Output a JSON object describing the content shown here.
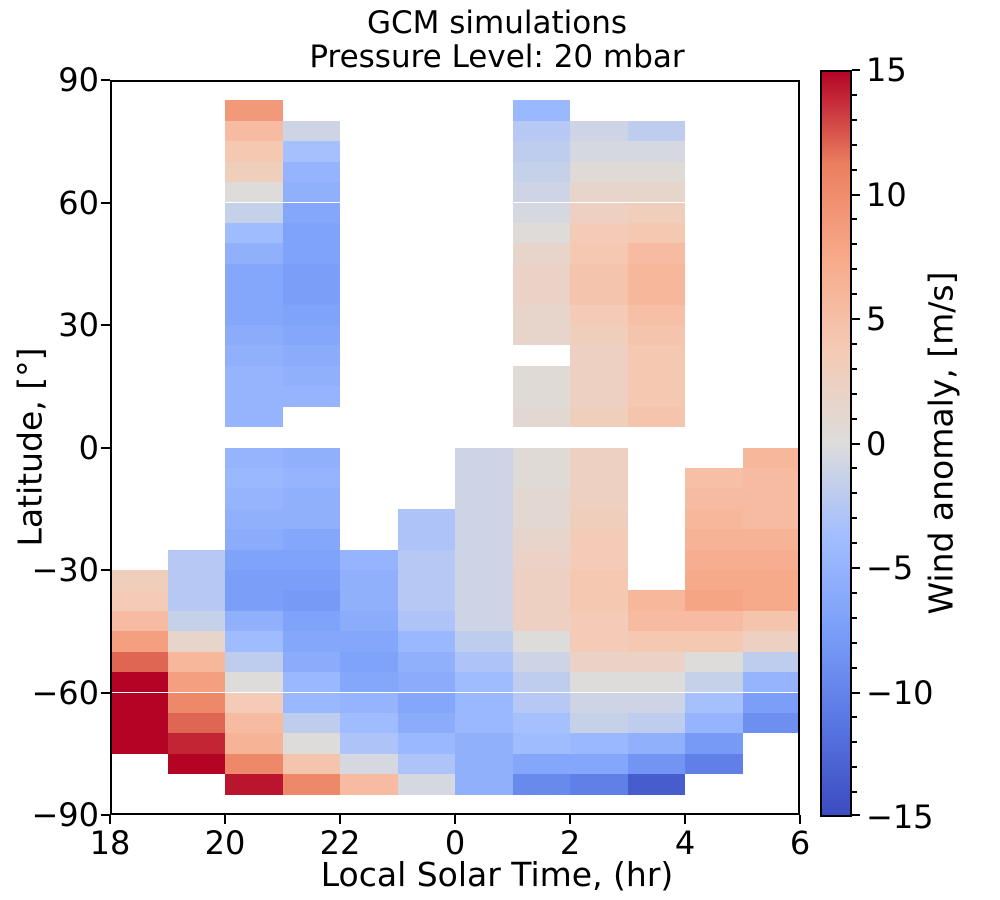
{
  "title": {
    "line1": "GCM simulations",
    "line2": "Pressure Level: 20 mbar"
  },
  "axes": {
    "xlabel": "Local Solar Time, (hr)",
    "ylabel": "Latitude, [°]",
    "x_tick_labels": [
      "18",
      "20",
      "22",
      "0",
      "2",
      "4",
      "6"
    ],
    "x_tick_hour_offsets": [
      0,
      2,
      4,
      6,
      8,
      10,
      12
    ],
    "y_tick_labels": [
      "90",
      "60",
      "30",
      "0",
      "−30",
      "−60",
      "−90"
    ],
    "y_tick_values": [
      90,
      60,
      30,
      0,
      -30,
      -60,
      -90
    ],
    "x_range_hours": 12,
    "lat_range": [
      -90,
      90
    ]
  },
  "colorbar": {
    "label": "Wind anomaly, [m/s]",
    "tick_labels": [
      "15",
      "10",
      "5",
      "0",
      "−5",
      "−10",
      "−15"
    ],
    "tick_values": [
      15,
      10,
      5,
      0,
      -5,
      -10,
      -15
    ],
    "minor_tick_step": 1,
    "vmin": -15,
    "vmax": 15,
    "colormap": "coolwarm",
    "stops": [
      "#3b4cc0",
      "#5977e3",
      "#7b9ff9",
      "#a2beff",
      "#dddcdb",
      "#f5cab4",
      "#f7aa8a",
      "#eb7f60",
      "#b40426"
    ]
  },
  "chart_data": {
    "type": "heatmap",
    "title": "GCM simulations — Pressure Level: 20 mbar",
    "xlabel": "Local Solar Time, (hr)",
    "ylabel": "Latitude, [°]",
    "value_label": "Wind anomaly, [m/s]",
    "vmin": -15,
    "vmax": 15,
    "x_edges_hours": [
      18,
      19,
      20,
      21,
      22,
      23,
      0,
      1,
      2,
      3,
      4,
      5,
      6
    ],
    "lat_edges": [
      90,
      85,
      80,
      75,
      70,
      65,
      60,
      55,
      50,
      45,
      40,
      35,
      30,
      25,
      20,
      15,
      10,
      5,
      0,
      -5,
      -10,
      -15,
      -20,
      -25,
      -30,
      -35,
      -40,
      -45,
      -50,
      -55,
      -60,
      -65,
      -70,
      -75,
      -80,
      -85,
      -90
    ],
    "values": [
      [
        null,
        null,
        null,
        null,
        null,
        null,
        null,
        null,
        null,
        null,
        null,
        null
      ],
      [
        null,
        null,
        9,
        null,
        null,
        null,
        null,
        -4.5,
        null,
        null,
        null,
        null
      ],
      [
        null,
        null,
        5.5,
        -1,
        null,
        null,
        null,
        -2.5,
        -1,
        -2,
        null,
        null
      ],
      [
        null,
        null,
        4,
        -3.5,
        null,
        null,
        null,
        -2,
        -0.5,
        -0.5,
        null,
        null
      ],
      [
        null,
        null,
        3,
        -5,
        null,
        null,
        null,
        -1.5,
        0.5,
        0.5,
        null,
        null
      ],
      [
        null,
        null,
        0,
        -5.5,
        null,
        null,
        null,
        -1,
        1.5,
        1.5,
        null,
        null
      ],
      [
        null,
        null,
        -1.5,
        -6.5,
        null,
        null,
        null,
        -0.5,
        2.5,
        3,
        null,
        null
      ],
      [
        null,
        null,
        -4,
        -7,
        null,
        null,
        null,
        0.3,
        3.5,
        4,
        null,
        null
      ],
      [
        null,
        null,
        -5.5,
        -7,
        null,
        null,
        null,
        1.5,
        4,
        5.5,
        null,
        null
      ],
      [
        null,
        null,
        -6.5,
        -7.5,
        null,
        null,
        null,
        2,
        4.5,
        6,
        null,
        null
      ],
      [
        null,
        null,
        -6.5,
        -7.5,
        null,
        null,
        null,
        2,
        4.5,
        6,
        null,
        null
      ],
      [
        null,
        null,
        -6.5,
        -7,
        null,
        null,
        null,
        1.5,
        3.5,
        5,
        null,
        null
      ],
      [
        null,
        null,
        -6,
        -6.5,
        null,
        null,
        null,
        1.5,
        3,
        4.5,
        null,
        null
      ],
      [
        null,
        null,
        -5.5,
        -6,
        null,
        null,
        null,
        null,
        2.5,
        4,
        null,
        null
      ],
      [
        null,
        null,
        -5,
        -5.5,
        null,
        null,
        null,
        0.5,
        2.5,
        4,
        null,
        null
      ],
      [
        null,
        null,
        -5,
        -5,
        null,
        null,
        null,
        0.5,
        2.5,
        4,
        null,
        null
      ],
      [
        null,
        null,
        -5,
        null,
        null,
        null,
        null,
        1,
        3,
        4.5,
        null,
        null
      ],
      [
        null,
        null,
        null,
        null,
        null,
        null,
        null,
        null,
        null,
        null,
        null,
        null
      ],
      [
        null,
        null,
        -5,
        -5.5,
        null,
        null,
        -1,
        0.5,
        2.5,
        null,
        null,
        6
      ],
      [
        null,
        null,
        -4.5,
        -5,
        null,
        null,
        -1,
        0.5,
        2.5,
        null,
        5,
        5.5
      ],
      [
        null,
        null,
        -5,
        -5.5,
        null,
        null,
        -1,
        1,
        2.5,
        null,
        5.5,
        5.5
      ],
      [
        null,
        null,
        -5.5,
        -5.5,
        null,
        -3,
        -1,
        1,
        3,
        null,
        6,
        5.5
      ],
      [
        null,
        null,
        -6,
        -6.5,
        null,
        -3,
        -1,
        1.5,
        3.5,
        null,
        6.5,
        6.5
      ],
      [
        null,
        -2.5,
        -7,
        -7,
        -5,
        -2.5,
        -1,
        2,
        3.5,
        null,
        7,
        7
      ],
      [
        3,
        -2.5,
        -7.5,
        -7.5,
        -5.5,
        -2.5,
        -1,
        2.5,
        4,
        null,
        7.5,
        7.5
      ],
      [
        3.5,
        -2.5,
        -7.5,
        -8,
        -5.5,
        -2.5,
        -1,
        2.5,
        4,
        6,
        8,
        7.5
      ],
      [
        5.5,
        -1.5,
        -5.5,
        -7,
        -6,
        -3,
        -1,
        2.5,
        3.5,
        5.5,
        5.5,
        4.5
      ],
      [
        8.5,
        1.5,
        -4,
        -6.5,
        -6.5,
        -4.5,
        -2,
        0,
        3.5,
        4,
        4,
        2.5
      ],
      [
        12,
        6,
        -2,
        -6,
        -7,
        -5.5,
        -3,
        -1,
        2,
        2,
        0,
        -2
      ],
      [
        15,
        8.5,
        0,
        -4.5,
        -6.5,
        -6,
        -4,
        -2,
        0,
        0,
        -1.5,
        -5
      ],
      [
        15,
        10.5,
        3.5,
        -4.5,
        -5,
        -6.5,
        -4.5,
        -2.5,
        -1,
        -1,
        -3.5,
        -7.5
      ],
      [
        15,
        12,
        5.5,
        -2,
        -4,
        -6,
        -4.5,
        -3.5,
        -1.5,
        -2,
        -5,
        -9
      ],
      [
        15,
        14,
        6.5,
        0,
        -3,
        -4.5,
        -5.5,
        -4,
        -4.5,
        -5.5,
        -8,
        null
      ],
      [
        null,
        15,
        10.5,
        4.5,
        -0.5,
        -3,
        -5.5,
        -6.5,
        -6.5,
        -8.5,
        -10.5,
        null
      ],
      [
        null,
        null,
        14.5,
        10.5,
        5.5,
        -0.5,
        -5.5,
        -9.5,
        -10.5,
        -13.5,
        null,
        null
      ],
      [
        null,
        null,
        null,
        null,
        null,
        null,
        null,
        null,
        null,
        null,
        null,
        null
      ]
    ]
  }
}
